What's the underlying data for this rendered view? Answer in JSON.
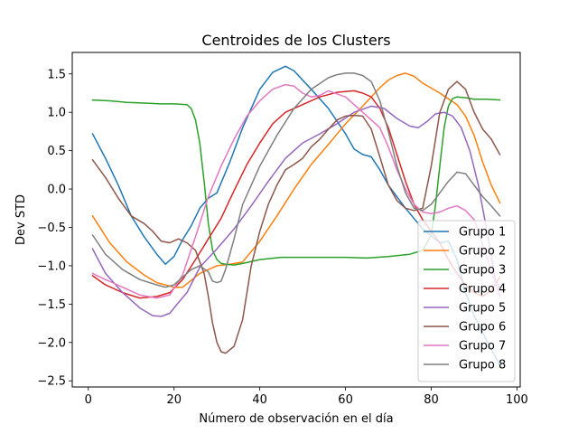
{
  "chart_data": {
    "type": "line",
    "title": "Centroides de los Clusters",
    "xlabel": "Número de observación en el día",
    "ylabel": "Dev STD",
    "xlim": [
      -3.75,
      100.75
    ],
    "ylim": [
      -2.58,
      1.78
    ],
    "xticks": [
      0,
      20,
      40,
      60,
      80,
      100
    ],
    "yticks": [
      -2.5,
      -2.0,
      -1.5,
      -1.0,
      -0.5,
      0.0,
      0.5,
      1.0,
      1.5
    ],
    "ytick_labels": [
      "−2.5",
      "−2.0",
      "−1.5",
      "−1.0",
      "−0.5",
      "0.0",
      "0.5",
      "1.0",
      "1.5"
    ],
    "grid": false,
    "legend_position": "lower-right",
    "series": [
      {
        "name": "Grupo 1",
        "color": "#1f77b4",
        "x": [
          1,
          4,
          7,
          10,
          13,
          16,
          18,
          20,
          22,
          24,
          26,
          28,
          30,
          33,
          36,
          40,
          43,
          46,
          48,
          52,
          56,
          60,
          62,
          64,
          66,
          68,
          70,
          74,
          78,
          82,
          84,
          86,
          88,
          90,
          93,
          96
        ],
        "y": [
          0.72,
          0.4,
          0.05,
          -0.35,
          -0.62,
          -0.85,
          -0.98,
          -0.88,
          -0.66,
          -0.48,
          -0.25,
          -0.12,
          -0.05,
          0.35,
          0.8,
          1.3,
          1.52,
          1.6,
          1.54,
          1.3,
          1.05,
          0.72,
          0.52,
          0.45,
          0.42,
          0.25,
          0.05,
          -0.25,
          -0.52,
          -0.7,
          -0.68,
          -0.92,
          -1.35,
          -1.65,
          -1.98,
          -2.3
        ]
      },
      {
        "name": "Grupo 2",
        "color": "#ff7f0e",
        "x": [
          1,
          5,
          9,
          13,
          16,
          18,
          20,
          22,
          26,
          30,
          33,
          36,
          40,
          44,
          48,
          52,
          56,
          60,
          64,
          66,
          68,
          70,
          72,
          74,
          76,
          78,
          82,
          86,
          88,
          90,
          92,
          94,
          96
        ],
        "y": [
          -0.35,
          -0.7,
          -0.95,
          -1.12,
          -1.22,
          -1.25,
          -1.28,
          -1.28,
          -1.1,
          -1.0,
          -0.98,
          -0.95,
          -0.68,
          -0.35,
          0.0,
          0.32,
          0.58,
          0.85,
          1.08,
          1.2,
          1.32,
          1.42,
          1.48,
          1.51,
          1.47,
          1.38,
          1.25,
          1.1,
          0.95,
          0.7,
          0.35,
          0.05,
          -0.18
        ]
      },
      {
        "name": "Grupo 3",
        "color": "#2ca02c",
        "x": [
          1,
          5,
          9,
          13,
          17,
          20,
          23,
          24,
          25,
          26,
          27,
          28,
          29,
          30,
          31,
          32,
          34,
          36,
          40,
          45,
          50,
          55,
          60,
          65,
          70,
          75,
          78,
          80,
          81,
          82,
          83,
          84,
          85,
          86,
          88,
          90,
          93,
          96
        ],
        "y": [
          1.16,
          1.15,
          1.13,
          1.12,
          1.11,
          1.11,
          1.1,
          1.05,
          0.9,
          0.6,
          0.1,
          -0.45,
          -0.8,
          -0.92,
          -0.97,
          -0.98,
          -0.99,
          -0.97,
          -0.92,
          -0.89,
          -0.89,
          -0.89,
          -0.89,
          -0.9,
          -0.88,
          -0.85,
          -0.8,
          -0.6,
          -0.2,
          0.3,
          0.8,
          1.08,
          1.18,
          1.2,
          1.19,
          1.17,
          1.17,
          1.16
        ]
      },
      {
        "name": "Grupo 4",
        "color": "#d62728",
        "x": [
          1,
          4,
          8,
          12,
          16,
          19,
          22,
          25,
          28,
          31,
          34,
          37,
          40,
          43,
          46,
          50,
          54,
          58,
          62,
          64,
          66,
          68,
          70,
          72,
          74,
          76,
          78,
          80,
          82,
          84,
          86,
          88,
          90,
          92,
          94,
          96
        ],
        "y": [
          -1.13,
          -1.25,
          -1.35,
          -1.42,
          -1.4,
          -1.35,
          -1.18,
          -0.92,
          -0.65,
          -0.38,
          -0.02,
          0.32,
          0.6,
          0.85,
          1.0,
          1.1,
          1.2,
          1.26,
          1.28,
          1.25,
          1.2,
          1.05,
          0.8,
          0.45,
          0.1,
          -0.2,
          -0.4,
          -0.55,
          -0.7,
          -0.92,
          -1.1,
          -1.25,
          -1.35,
          -1.4,
          -1.32,
          -1.15
        ]
      },
      {
        "name": "Grupo 5",
        "color": "#9467bd",
        "x": [
          1,
          4,
          8,
          12,
          15,
          17,
          19,
          21,
          23,
          26,
          30,
          34,
          38,
          42,
          46,
          50,
          54,
          58,
          62,
          66,
          69,
          72,
          75,
          77,
          79,
          81,
          83,
          85,
          87,
          89,
          91,
          93,
          95,
          96
        ],
        "y": [
          -0.78,
          -1.1,
          -1.35,
          -1.55,
          -1.65,
          -1.66,
          -1.62,
          -1.48,
          -1.35,
          -1.02,
          -0.78,
          -0.52,
          -0.22,
          0.1,
          0.4,
          0.6,
          0.72,
          0.85,
          1.0,
          1.08,
          1.05,
          0.92,
          0.82,
          0.8,
          0.88,
          0.98,
          1.0,
          0.95,
          0.8,
          0.5,
          0.05,
          -0.55,
          -1.2,
          -1.3
        ]
      },
      {
        "name": "Grupo 6",
        "color": "#8c564b",
        "x": [
          1,
          4,
          7,
          10,
          13,
          15,
          17,
          19,
          21,
          23,
          25,
          27,
          28,
          29,
          30,
          31,
          32,
          34,
          36,
          38,
          40,
          42,
          44,
          46,
          48,
          50,
          52,
          54,
          56,
          58,
          60,
          62,
          64,
          66,
          68,
          70,
          72,
          74,
          76,
          78,
          80,
          82,
          84,
          86,
          88,
          90,
          92,
          94,
          96
        ],
        "y": [
          0.38,
          0.15,
          -0.12,
          -0.35,
          -0.45,
          -0.55,
          -0.68,
          -0.7,
          -0.65,
          -0.7,
          -0.8,
          -1.1,
          -1.4,
          -1.75,
          -2.0,
          -2.12,
          -2.14,
          -2.05,
          -1.7,
          -1.0,
          -0.55,
          -0.2,
          0.05,
          0.25,
          0.32,
          0.4,
          0.55,
          0.65,
          0.78,
          0.9,
          0.95,
          0.96,
          0.95,
          0.78,
          0.42,
          0.05,
          -0.15,
          -0.25,
          -0.28,
          -0.25,
          0.3,
          1.0,
          1.3,
          1.4,
          1.3,
          1.0,
          0.78,
          0.65,
          0.45
        ]
      },
      {
        "name": "Grupo 7",
        "color": "#e377c2",
        "x": [
          1,
          4,
          8,
          12,
          16,
          19,
          22,
          25,
          28,
          31,
          34,
          37,
          40,
          43,
          46,
          48,
          50,
          52,
          54,
          56,
          60,
          64,
          68,
          70,
          72,
          74,
          76,
          78,
          80,
          82,
          84,
          86,
          88,
          90,
          93,
          96
        ],
        "y": [
          -1.1,
          -1.18,
          -1.28,
          -1.38,
          -1.42,
          -1.38,
          -1.12,
          -0.62,
          -0.1,
          0.3,
          0.65,
          0.95,
          1.15,
          1.3,
          1.36,
          1.34,
          1.25,
          1.2,
          1.22,
          1.28,
          1.2,
          1.0,
          0.8,
          0.55,
          0.25,
          0.0,
          -0.2,
          -0.3,
          -0.32,
          -0.3,
          -0.25,
          -0.22,
          -0.28,
          -0.4,
          -0.9,
          -1.4
        ]
      },
      {
        "name": "Grupo 8",
        "color": "#7f7f7f",
        "x": [
          1,
          4,
          8,
          12,
          16,
          18,
          20,
          22,
          24,
          26,
          28,
          29,
          30,
          31,
          32,
          34,
          36,
          38,
          40,
          44,
          48,
          52,
          56,
          58,
          60,
          62,
          64,
          66,
          68,
          70,
          72,
          74,
          76,
          78,
          80,
          82,
          84,
          86,
          88,
          90,
          92,
          94,
          96
        ],
        "y": [
          -0.6,
          -0.85,
          -1.05,
          -1.18,
          -1.25,
          -1.28,
          -1.25,
          -1.15,
          -1.05,
          -1.0,
          -1.08,
          -1.2,
          -1.22,
          -1.2,
          -1.05,
          -0.65,
          -0.2,
          0.05,
          0.3,
          0.7,
          1.05,
          1.3,
          1.45,
          1.49,
          1.51,
          1.51,
          1.48,
          1.4,
          1.15,
          0.75,
          0.3,
          -0.05,
          -0.25,
          -0.28,
          -0.2,
          -0.05,
          0.1,
          0.22,
          0.2,
          0.05,
          -0.1,
          -0.22,
          -0.35
        ]
      }
    ]
  }
}
